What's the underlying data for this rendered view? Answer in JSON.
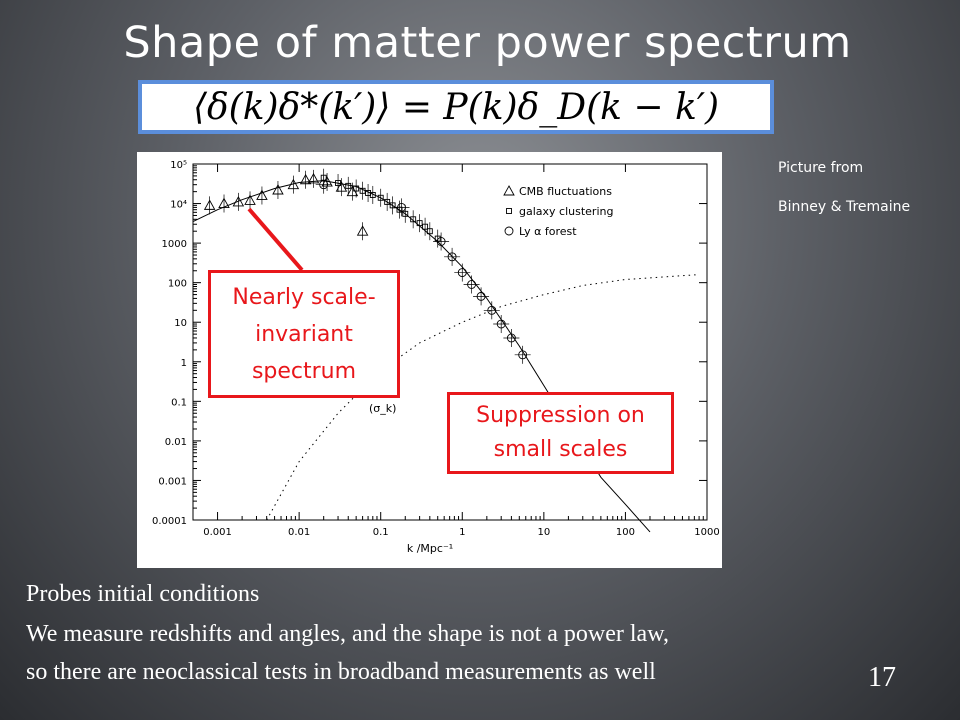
{
  "slide": {
    "title": "Shape of matter power spectrum",
    "equation": "⟨δ(k)δ*(k′)⟩ = P(k)δ_D(k − k′)",
    "credit_line1": "Picture from",
    "credit_line2": "Binney & Tremaine",
    "callout_1": "Nearly scale-invariant spectrum",
    "callout_2": "Suppression on small scales",
    "body_line1": "Probes initial conditions",
    "body_line2": "We measure redshifts and angles, and the shape is not a power law,",
    "body_line3": "so there are neoclassical  tests in broadband measurements  as well",
    "slide_number": "17"
  },
  "chart_data": {
    "type": "scatter",
    "xscale": "log",
    "yscale": "log",
    "xlim": [
      0.0005,
      1000
    ],
    "ylim": [
      0.0001,
      100000
    ],
    "xlabel": "k /Mpc⁻¹",
    "ylabel": "",
    "x_ticks": [
      "0.001",
      "0.01",
      "0.1",
      "1",
      "10",
      "100",
      "1000"
    ],
    "y_ticks": [
      "0.0001",
      "0.001",
      "0.01",
      "0.1",
      "1",
      "10",
      "100",
      "1000",
      "10⁴",
      "10⁵"
    ],
    "annotation": "(σ_k)",
    "legend_position": "top-right",
    "series": [
      {
        "name": "CMB fluctuations",
        "marker": "triangle",
        "points": [
          [
            0.0008,
            9000
          ],
          [
            0.0012,
            10000
          ],
          [
            0.0018,
            11000
          ],
          [
            0.0025,
            12000
          ],
          [
            0.0035,
            16000
          ],
          [
            0.0055,
            22000
          ],
          [
            0.0085,
            30000
          ],
          [
            0.012,
            40000
          ],
          [
            0.015,
            42000
          ],
          [
            0.022,
            35000
          ],
          [
            0.033,
            26000
          ],
          [
            0.045,
            20000
          ],
          [
            0.06,
            2000
          ]
        ]
      },
      {
        "name": "galaxy clustering",
        "marker": "square",
        "points": [
          [
            0.02,
            45000
          ],
          [
            0.03,
            33000
          ],
          [
            0.04,
            28000
          ],
          [
            0.05,
            24000
          ],
          [
            0.06,
            21000
          ],
          [
            0.07,
            18500
          ],
          [
            0.08,
            16500
          ],
          [
            0.1,
            14000
          ],
          [
            0.12,
            11000
          ],
          [
            0.14,
            9000
          ],
          [
            0.17,
            7000
          ],
          [
            0.2,
            5500
          ],
          [
            0.25,
            4000
          ],
          [
            0.3,
            3200
          ],
          [
            0.35,
            2600
          ],
          [
            0.4,
            2000
          ],
          [
            0.5,
            1300
          ]
        ]
      },
      {
        "name": "Ly α forest",
        "marker": "circle",
        "points": [
          [
            0.02,
            30000
          ],
          [
            0.18,
            8000
          ],
          [
            0.55,
            1100
          ],
          [
            0.75,
            450
          ],
          [
            1.0,
            180
          ],
          [
            1.3,
            90
          ],
          [
            1.7,
            45
          ],
          [
            2.3,
            20
          ],
          [
            3.0,
            9
          ],
          [
            4.0,
            4
          ],
          [
            5.5,
            1.5
          ]
        ]
      }
    ],
    "curves": [
      {
        "style": "solid",
        "points": [
          [
            0.0005,
            3500
          ],
          [
            0.001,
            7000
          ],
          [
            0.002,
            12500
          ],
          [
            0.005,
            24000
          ],
          [
            0.01,
            34000
          ],
          [
            0.02,
            38000
          ],
          [
            0.05,
            27000
          ],
          [
            0.1,
            14000
          ],
          [
            0.2,
            5500
          ],
          [
            0.5,
            1100
          ],
          [
            1,
            250
          ],
          [
            2,
            40
          ],
          [
            5,
            2.5
          ],
          [
            10,
            0.25
          ],
          [
            20,
            0.025
          ],
          [
            50,
            0.0012
          ],
          [
            100,
            0.00025
          ],
          [
            200,
            5e-05
          ]
        ]
      },
      {
        "style": "dotted",
        "points": [
          [
            0.004,
            0.0001
          ],
          [
            0.01,
            0.003
          ],
          [
            0.03,
            0.05
          ],
          [
            0.1,
            0.6
          ],
          [
            0.3,
            3
          ],
          [
            1,
            10
          ],
          [
            3,
            25
          ],
          [
            10,
            50
          ],
          [
            30,
            85
          ],
          [
            100,
            120
          ],
          [
            300,
            140
          ],
          [
            800,
            160
          ]
        ]
      }
    ]
  }
}
